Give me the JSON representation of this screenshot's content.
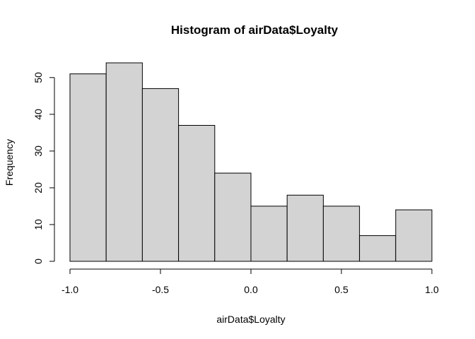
{
  "chart_data": {
    "type": "bar",
    "title": "Histogram of airData$Loyalty",
    "xlabel": "airData$Loyalty",
    "ylabel": "Frequency",
    "bin_edges": [
      -1.0,
      -0.8,
      -0.6,
      -0.4,
      -0.2,
      0.0,
      0.2,
      0.4,
      0.6,
      0.8,
      1.0
    ],
    "values": [
      51,
      54,
      47,
      37,
      24,
      15,
      18,
      15,
      7,
      14
    ],
    "xlim": [
      -1.0,
      1.0
    ],
    "ylim": [
      0,
      54
    ],
    "x_ticks": [
      -1.0,
      -0.5,
      0.0,
      0.5,
      1.0
    ],
    "x_tick_labels": [
      "-1.0",
      "-0.5",
      "0.0",
      "0.5",
      "1.0"
    ],
    "y_ticks": [
      0,
      10,
      20,
      30,
      40,
      50
    ],
    "y_tick_labels": [
      "0",
      "10",
      "20",
      "30",
      "40",
      "50"
    ],
    "colors": {
      "bar_fill": "#d3d3d3",
      "bar_stroke": "#000000"
    },
    "grid": false
  }
}
